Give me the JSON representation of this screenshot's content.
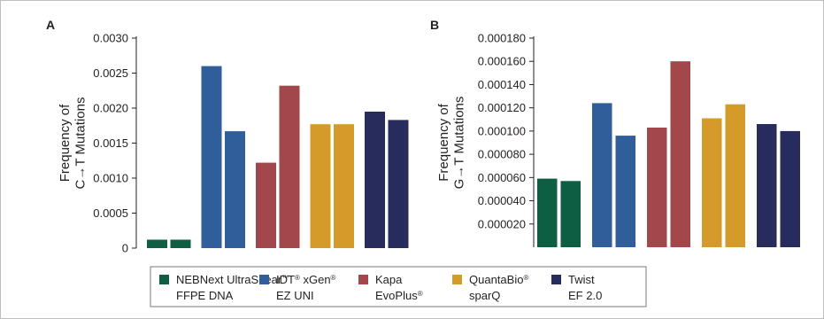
{
  "chart_data": [
    {
      "type": "bar",
      "panel_label": "A",
      "ylabel_lines": [
        "Frequency of",
        "C→T Mutations"
      ],
      "ylim": [
        0,
        0.003
      ],
      "yticks": [
        "0",
        "0.0005",
        "0.0010",
        "0.0015",
        "0.0020",
        "0.0025",
        "0.0030"
      ],
      "grid": false,
      "series": [
        {
          "name": "NEBNext UltraShear™ FFPE DNA",
          "color": "#0e5e44",
          "values": [
            0.00012,
            0.00012
          ]
        },
        {
          "name": "IDT® xGen® EZ UNI",
          "color": "#2f5e9a",
          "values": [
            0.0026,
            0.00167
          ]
        },
        {
          "name": "Kapa EvoPlus®",
          "color": "#a2474b",
          "values": [
            0.00122,
            0.00232
          ]
        },
        {
          "name": "QuantaBio® sparQ",
          "color": "#d49b2a",
          "values": [
            0.00177,
            0.00177
          ]
        },
        {
          "name": "Twist EF 2.0",
          "color": "#272c5c",
          "values": [
            0.00195,
            0.00183
          ]
        }
      ]
    },
    {
      "type": "bar",
      "panel_label": "B",
      "ylabel_lines": [
        "Frequency of",
        "G→T Mutations"
      ],
      "ylim": [
        0,
        0.00018
      ],
      "yticks": [
        "0.000020",
        "0.000040",
        "0.000060",
        "0.000080",
        "0.000100",
        "0.000120",
        "0.000140",
        "0.000160",
        "0.000180"
      ],
      "grid": false,
      "series": [
        {
          "name": "NEBNext UltraShear™ FFPE DNA",
          "color": "#0e5e44",
          "values": [
            5.9e-05,
            5.7e-05
          ]
        },
        {
          "name": "IDT® xGen® EZ UNI",
          "color": "#2f5e9a",
          "values": [
            0.000124,
            9.6e-05
          ]
        },
        {
          "name": "Kapa EvoPlus®",
          "color": "#a2474b",
          "values": [
            0.000103,
            0.00016
          ]
        },
        {
          "name": "QuantaBio® sparQ",
          "color": "#d49b2a",
          "values": [
            0.000111,
            0.000123
          ]
        },
        {
          "name": "Twist EF 2.0",
          "color": "#272c5c",
          "values": [
            0.000106,
            0.0001
          ]
        }
      ]
    }
  ],
  "legend": {
    "placement": "bottom",
    "items": [
      {
        "color": "#0e5e44",
        "line1": "NEBNext UltraShear™",
        "line2": "FFPE DNA"
      },
      {
        "color": "#2f5e9a",
        "line1": "IDT® xGen®",
        "line2": "EZ UNI"
      },
      {
        "color": "#a2474b",
        "line1": "Kapa",
        "line2": "EvoPlus®"
      },
      {
        "color": "#d49b2a",
        "line1": "QuantaBio®",
        "line2": "sparQ"
      },
      {
        "color": "#272c5c",
        "line1": "Twist",
        "line2": "EF 2.0"
      }
    ]
  }
}
